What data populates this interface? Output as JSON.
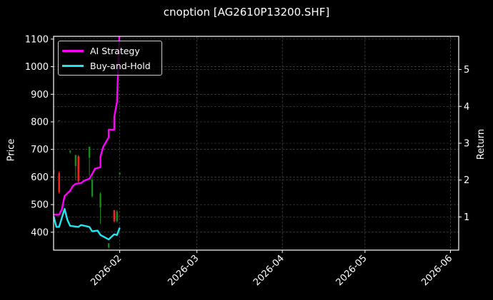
{
  "chart_data": {
    "type": "line",
    "title": "cnoption [AG2610P13200.SHF]",
    "xlabel": "",
    "ylabel": "Price",
    "ylabel_right": "Return",
    "x_ticks": [
      "2026-02",
      "2026-03",
      "2026-04",
      "2026-05",
      "2026-06"
    ],
    "y_ticks_left": [
      400,
      500,
      600,
      700,
      800,
      900,
      1000,
      1100
    ],
    "y_ticks_right": [
      1,
      2,
      3,
      4,
      5
    ],
    "ylim_left": [
      335,
      1110
    ],
    "ylim_right": [
      0.1,
      5.9
    ],
    "xlim": [
      "2026-01-08",
      "2026-06-04"
    ],
    "grid": true,
    "legend_position": "upper left",
    "series": [
      {
        "name": "AI Strategy",
        "axis": "right",
        "color": "#ff00ff",
        "x": [
          "2026-01-08",
          "2026-01-10",
          "2026-01-11",
          "2026-01-12",
          "2026-01-14",
          "2026-01-15",
          "2026-01-16",
          "2026-01-18",
          "2026-01-19",
          "2026-01-21",
          "2026-01-22",
          "2026-01-23",
          "2026-01-25",
          "2026-01-25",
          "2026-01-26",
          "2026-01-28",
          "2026-01-28",
          "2026-01-30",
          "2026-01-30",
          "2026-01-31",
          "2026-01-31",
          "2026-02-01"
        ],
        "values": [
          1.06,
          1.06,
          1.2,
          1.57,
          1.71,
          1.84,
          1.9,
          1.92,
          1.98,
          2.04,
          2.16,
          2.31,
          2.35,
          2.63,
          2.9,
          3.16,
          3.37,
          3.37,
          3.71,
          4.12,
          4.12,
          6.2
        ]
      },
      {
        "name": "Buy-and-Hold",
        "axis": "right",
        "color": "#22e5f0",
        "x": [
          "2026-01-08",
          "2026-01-09",
          "2026-01-10",
          "2026-01-12",
          "2026-01-13",
          "2026-01-14",
          "2026-01-17",
          "2026-01-18",
          "2026-01-21",
          "2026-01-22",
          "2026-01-24",
          "2026-01-25",
          "2026-01-27",
          "2026-01-28",
          "2026-01-30",
          "2026-01-31",
          "2026-02-01"
        ],
        "values": [
          1.02,
          0.73,
          0.73,
          1.22,
          0.92,
          0.76,
          0.73,
          0.78,
          0.73,
          0.61,
          0.63,
          0.51,
          0.43,
          0.39,
          0.53,
          0.51,
          0.71
        ]
      }
    ],
    "candles": [
      {
        "x": "2026-01-08",
        "open": 625,
        "close": 610,
        "high": 625,
        "low": 610,
        "color": "#ff2020"
      },
      {
        "x": "2026-01-10",
        "open": 615,
        "close": 545,
        "high": 620,
        "low": 540,
        "color": "#ff2020"
      },
      {
        "x": "2026-01-10",
        "open": 805,
        "close": 803,
        "high": 805,
        "low": 803,
        "color": "#ff2020"
      },
      {
        "x": "2026-01-14",
        "open": 690,
        "close": 695,
        "high": 698,
        "low": 685,
        "color": "#1a8a1a"
      },
      {
        "x": "2026-01-16",
        "open": 640,
        "close": 680,
        "high": 680,
        "low": 590,
        "color": "#1a8a1a"
      },
      {
        "x": "2026-01-17",
        "open": 675,
        "close": 585,
        "high": 680,
        "low": 580,
        "color": "#ff2020"
      },
      {
        "x": "2026-01-21",
        "open": 670,
        "close": 710,
        "high": 710,
        "low": 605,
        "color": "#1a8a1a"
      },
      {
        "x": "2026-01-22",
        "open": 530,
        "close": 590,
        "high": 600,
        "low": 525,
        "color": "#1a8a1a"
      },
      {
        "x": "2026-01-25",
        "open": 490,
        "close": 540,
        "high": 545,
        "low": 430,
        "color": "#1a8a1a"
      },
      {
        "x": "2026-01-28",
        "open": 345,
        "close": 360,
        "high": 360,
        "low": 340,
        "color": "#1a8a1a"
      },
      {
        "x": "2026-01-30",
        "open": 480,
        "close": 440,
        "high": 480,
        "low": 435,
        "color": "#ff2020"
      },
      {
        "x": "2026-01-31",
        "open": 440,
        "close": 475,
        "high": 480,
        "low": 435,
        "color": "#1a8a1a"
      },
      {
        "x": "2026-02-01",
        "open": 610,
        "close": 615,
        "high": 615,
        "low": 608,
        "color": "#1a8a1a"
      }
    ]
  },
  "labels": {
    "title": "cnoption [AG2610P13200.SHF]",
    "ylabel_left": "Price",
    "ylabel_right": "Return",
    "legend": [
      "AI Strategy",
      "Buy-and-Hold"
    ]
  },
  "colors": {
    "background": "#000000",
    "ai_strategy": "#ff00ff",
    "buy_and_hold": "#22e5f0",
    "candle_up": "#1a8a1a",
    "candle_down": "#ff2020",
    "grid": "#555555",
    "axis": "#ffffff"
  }
}
